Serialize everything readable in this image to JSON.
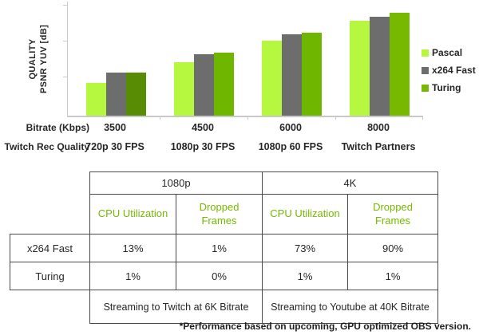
{
  "chart_data": {
    "type": "bar",
    "title": "",
    "ylabel_lines": [
      "QUALITY",
      "PSNR YUV [dB]"
    ],
    "y_axis": {
      "tick_labels_visible": false,
      "unit": "dB",
      "note": "no numeric ticks shown; bar heights given as percent of plot height"
    },
    "legend": {
      "position": "right",
      "entries": [
        "Pascal",
        "x264 Fast",
        "Turing"
      ]
    },
    "x_axis_rows": [
      {
        "label": "Bitrate (Kbps)",
        "categories": [
          "3500",
          "4500",
          "6000",
          "8000"
        ]
      },
      {
        "label": "Twitch Rec Quality",
        "categories": [
          "720p 30 FPS",
          "1080p 30 FPS",
          "1080p 60 FPS",
          "Twitch Partners"
        ]
      }
    ],
    "series": [
      {
        "name": "Pascal",
        "color": "#b5f83f",
        "values_pct": [
          29,
          47,
          66,
          83
        ]
      },
      {
        "name": "x264 Fast",
        "color": "#6d6d6d",
        "values_pct": [
          38,
          54,
          71,
          87
        ]
      },
      {
        "name": "Turing",
        "color": "#76b900",
        "bar_colors": [
          "#588c05",
          "#6eb600",
          "#6eb600",
          "#76b900"
        ],
        "values_pct": [
          38,
          55,
          73,
          90
        ]
      }
    ]
  },
  "table": {
    "col_groups": [
      {
        "label": "1080p",
        "span": 2
      },
      {
        "label": "4K",
        "span": 2
      }
    ],
    "sub_headers": [
      "CPU Utilization",
      "Dropped Frames",
      "CPU Utilization",
      "Dropped Frames"
    ],
    "rows": [
      {
        "label": "x264 Fast",
        "values": [
          "13%",
          "1%",
          "73%",
          "90%"
        ]
      },
      {
        "label": "Turing",
        "values": [
          "1%",
          "0%",
          "1%",
          "1%"
        ]
      }
    ],
    "footer_cells": [
      "Streaming to Twitch at 6K Bitrate",
      "Streaming to Youtube at 40K Bitrate"
    ],
    "colors": {
      "header_text": "#76b900",
      "border": "#4a4a4a"
    }
  },
  "footnote": "*Performance based on upcoming, GPU optimized OBS version."
}
